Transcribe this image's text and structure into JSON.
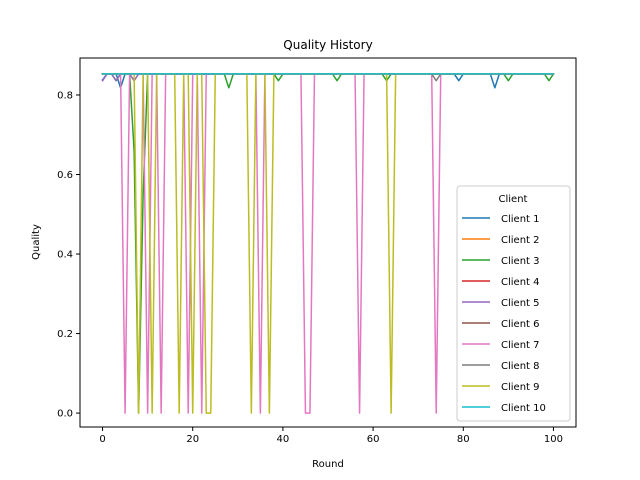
{
  "chart_data": {
    "type": "line",
    "title": "Quality History",
    "xlabel": "Round",
    "ylabel": "Quality",
    "xlim": [
      -5,
      105
    ],
    "ylim": [
      -0.035,
      0.893
    ],
    "xticks": [
      0,
      20,
      40,
      60,
      80,
      100
    ],
    "yticks": [
      0.0,
      0.2,
      0.4,
      0.6,
      0.8
    ],
    "ytick_labels": [
      "0.0",
      "0.2",
      "0.4",
      "0.6",
      "0.8"
    ],
    "grid": false,
    "legend": {
      "title": "Client",
      "placement": "lower-right"
    },
    "baseline": 0.853,
    "x_max": 100,
    "series": [
      {
        "name": "Client 1",
        "color": "#1f77b4",
        "base": 0.853,
        "points": [
          [
            0,
            0.838
          ],
          [
            1,
            0.853
          ],
          [
            3,
            0.853
          ],
          [
            4,
            0.818
          ],
          [
            5,
            0.853
          ],
          [
            78,
            0.853
          ],
          [
            79,
            0.836
          ],
          [
            80,
            0.853
          ],
          [
            86,
            0.853
          ],
          [
            87,
            0.818
          ],
          [
            88,
            0.853
          ]
        ]
      },
      {
        "name": "Client 2",
        "color": "#ff7f0e",
        "base": 0.853,
        "points": []
      },
      {
        "name": "Client 3",
        "color": "#2ca02c",
        "base": 0.853,
        "points": [
          [
            0,
            0.853
          ],
          [
            2,
            0.853
          ],
          [
            3,
            0.836
          ],
          [
            4,
            0.853
          ],
          [
            6,
            0.853
          ],
          [
            7,
            0.66
          ],
          [
            8,
            0.0
          ],
          [
            9,
            0.55
          ],
          [
            10,
            0.853
          ],
          [
            27,
            0.853
          ],
          [
            28,
            0.818
          ],
          [
            29,
            0.853
          ],
          [
            38,
            0.853
          ],
          [
            39,
            0.836
          ],
          [
            40,
            0.853
          ],
          [
            51,
            0.853
          ],
          [
            52,
            0.836
          ],
          [
            53,
            0.853
          ],
          [
            62,
            0.853
          ],
          [
            63,
            0.836
          ],
          [
            64,
            0.853
          ],
          [
            89,
            0.853
          ],
          [
            90,
            0.836
          ],
          [
            91,
            0.853
          ],
          [
            98,
            0.853
          ],
          [
            99,
            0.836
          ],
          [
            100,
            0.853
          ]
        ]
      },
      {
        "name": "Client 4",
        "color": "#d62728",
        "base": 0.853,
        "points": []
      },
      {
        "name": "Client 5",
        "color": "#9467bd",
        "base": 0.853,
        "points": [
          [
            0,
            0.836
          ],
          [
            1,
            0.853
          ],
          [
            2,
            0.853
          ],
          [
            3,
            0.836
          ],
          [
            4,
            0.853
          ],
          [
            6,
            0.853
          ],
          [
            7,
            0.836
          ],
          [
            8,
            0.853
          ]
        ]
      },
      {
        "name": "Client 6",
        "color": "#8c564b",
        "base": 0.853,
        "points": []
      },
      {
        "name": "Client 7",
        "color": "#e377c2",
        "base": 0.853,
        "points": [
          [
            0,
            0.853
          ],
          [
            4,
            0.853
          ],
          [
            5,
            0.0
          ],
          [
            6,
            0.853
          ],
          [
            9,
            0.853
          ],
          [
            10,
            0.0
          ],
          [
            11,
            0.853
          ],
          [
            12,
            0.853
          ],
          [
            13,
            0.0
          ],
          [
            14,
            0.853
          ],
          [
            18,
            0.853
          ],
          [
            19,
            0.0
          ],
          [
            20,
            0.853
          ],
          [
            21,
            0.853
          ],
          [
            22,
            0.0
          ],
          [
            23,
            0.853
          ],
          [
            34,
            0.853
          ],
          [
            35,
            0.0
          ],
          [
            36,
            0.853
          ],
          [
            44,
            0.853
          ],
          [
            45,
            0.0
          ],
          [
            46,
            0.0
          ],
          [
            47,
            0.853
          ],
          [
            56,
            0.853
          ],
          [
            57,
            0.0
          ],
          [
            58,
            0.853
          ],
          [
            73,
            0.853
          ],
          [
            74,
            0.0
          ],
          [
            75,
            0.853
          ]
        ]
      },
      {
        "name": "Client 8",
        "color": "#7f7f7f",
        "base": 0.853,
        "points": [
          [
            0,
            0.853
          ],
          [
            73,
            0.853
          ],
          [
            74,
            0.836
          ],
          [
            75,
            0.853
          ]
        ]
      },
      {
        "name": "Client 9",
        "color": "#bcbd22",
        "base": 0.853,
        "points": [
          [
            0,
            0.853
          ],
          [
            7,
            0.853
          ],
          [
            8,
            0.0
          ],
          [
            9,
            0.853
          ],
          [
            10,
            0.853
          ],
          [
            11,
            0.0
          ],
          [
            12,
            0.853
          ],
          [
            16,
            0.853
          ],
          [
            17,
            0.0
          ],
          [
            18,
            0.853
          ],
          [
            19,
            0.853
          ],
          [
            20,
            0.0
          ],
          [
            21,
            0.853
          ],
          [
            22,
            0.853
          ],
          [
            23,
            0.0
          ],
          [
            24,
            0.0
          ],
          [
            25,
            0.853
          ],
          [
            32,
            0.853
          ],
          [
            33,
            0.0
          ],
          [
            34,
            0.853
          ],
          [
            36,
            0.853
          ],
          [
            37,
            0.0
          ],
          [
            38,
            0.853
          ],
          [
            63,
            0.853
          ],
          [
            64,
            0.0
          ],
          [
            65,
            0.853
          ]
        ]
      },
      {
        "name": "Client 10",
        "color": "#17becf",
        "base": 0.853,
        "points": []
      }
    ]
  }
}
